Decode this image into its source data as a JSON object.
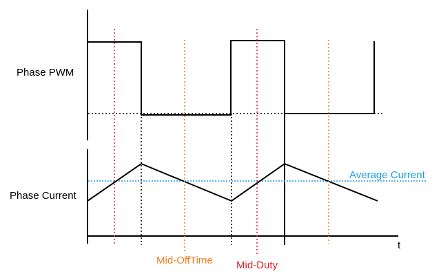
{
  "labels": {
    "phase_pwm": "Phase PWM",
    "phase_current": "Phase Current",
    "average_current": "Average Current",
    "mid_offtime": "Mid-OffTime",
    "mid_duty": "Mid-Duty",
    "time_axis": "t"
  },
  "colors": {
    "signal": "#000000",
    "mid_duty": "#e0202a",
    "mid_offtime": "#f07c1a",
    "average": "#1a9ee0"
  }
}
